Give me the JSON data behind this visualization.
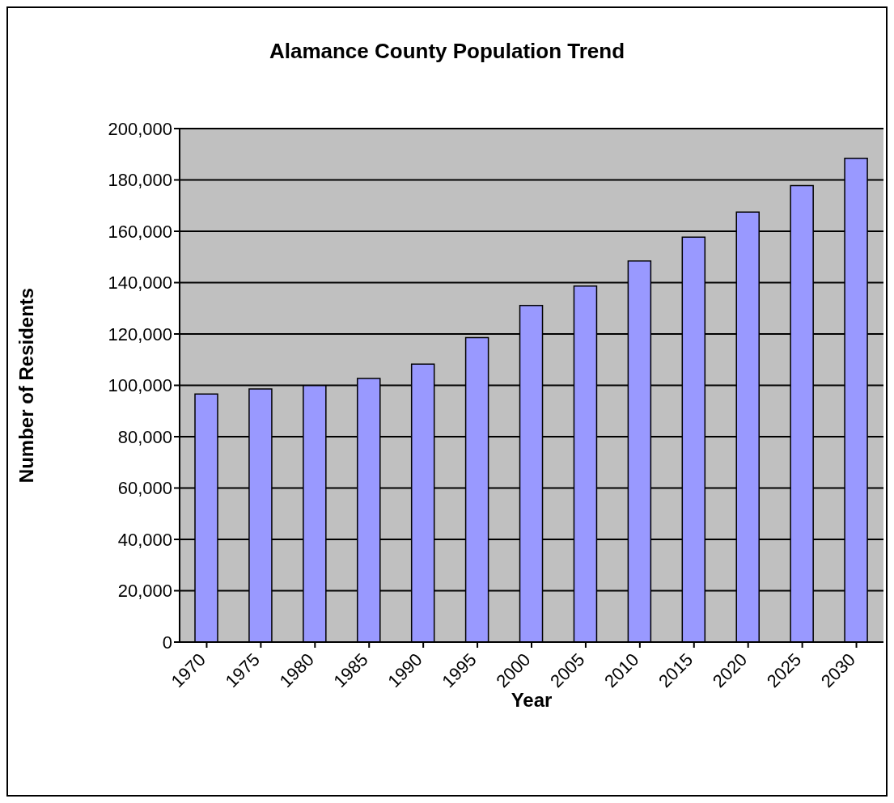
{
  "chart_data": {
    "type": "bar",
    "title": "Alamance County Population Trend",
    "xlabel": "Year",
    "ylabel": "Number of Residents",
    "categories": [
      "1970",
      "1975",
      "1980",
      "1985",
      "1990",
      "1995",
      "2000",
      "2005",
      "2010",
      "2015",
      "2020",
      "2025",
      "2030"
    ],
    "values": [
      96600,
      98600,
      99900,
      102700,
      108300,
      118600,
      131100,
      138700,
      148400,
      157700,
      167500,
      177800,
      188400
    ],
    "color": "#9999ff",
    "ylim": [
      0,
      200000
    ],
    "yticks": [
      0,
      {
        "value": 20000,
        "label": "20,000"
      },
      {
        "value": 40000,
        "label": "40,000"
      },
      {
        "value": 60000,
        "label": "60,000"
      },
      {
        "value": 80000,
        "label": "80,000"
      },
      {
        "value": 100000,
        "label": "100,000"
      },
      {
        "value": 120000,
        "label": "120,000"
      },
      {
        "value": 140000,
        "label": "140,000"
      },
      {
        "value": 160000,
        "label": "160,000"
      },
      {
        "value": 180000,
        "label": "180,000"
      },
      {
        "value": 200000,
        "label": "200,000"
      }
    ],
    "grid": "y"
  }
}
